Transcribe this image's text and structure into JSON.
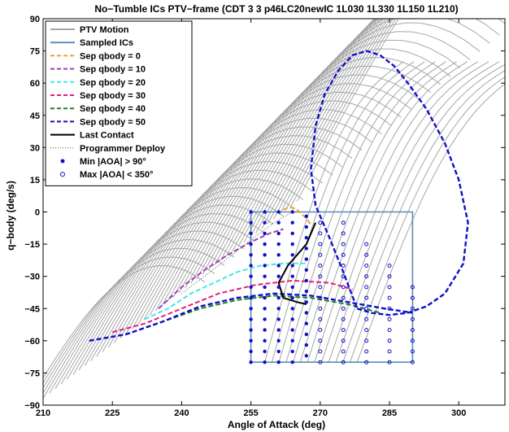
{
  "chart_data": {
    "type": "line",
    "title": "No−Tumble ICs PTV−frame (CDT 3 3 p46LC20newIC 1L030 1L330 1L150 1L210)",
    "xlabel": "Angle of Attack (deg)",
    "ylabel": "q−body (deg/s)",
    "xlim": [
      210,
      310
    ],
    "ylim": [
      -90,
      90
    ],
    "xticks": [
      "210",
      "225",
      "240",
      "255",
      "270",
      "285",
      "300"
    ],
    "yticks": [
      "90",
      "75",
      "60",
      "45",
      "30",
      "15",
      "0",
      "−15",
      "−30",
      "−45",
      "−60",
      "−75",
      "−90"
    ],
    "grid": false,
    "legend_position": "top-left",
    "colors": {
      "ptv": "#a6a6a6",
      "sampled": "#5b8db8",
      "sep0": "#f0a030",
      "sep10": "#9b3fb0",
      "sep20": "#40e8e8",
      "sep30": "#e0207a",
      "sep40": "#208020",
      "sep50": "#1010c8",
      "last_contact": "#000000",
      "programmer": "#555555",
      "markers": "#1010c8"
    },
    "legend": [
      "PTV Motion",
      "Sampled ICs",
      "Sep qbody = 0",
      "Sep qbody = 10",
      "Sep qbody = 20",
      "Sep qbody = 30",
      "Sep qbody = 40",
      "Sep qbody = 50",
      "Last Contact",
      "Programmer Deploy",
      "Min |AOA| > 90°",
      "Max |AOA| < 350°"
    ],
    "series": [
      {
        "name": "Sampled ICs",
        "x": [
          255,
          290,
          290,
          255,
          255
        ],
        "y": [
          0,
          0,
          -70,
          -70,
          0
        ]
      },
      {
        "name": "Sep qbody = 0",
        "x": [
          262,
          263,
          264,
          265,
          266,
          267,
          268
        ],
        "y": [
          1,
          2,
          2,
          1,
          -1,
          -3,
          -6
        ]
      },
      {
        "name": "Sep qbody = 10",
        "x": [
          235,
          240,
          245,
          250,
          255,
          259,
          262
        ],
        "y": [
          -45,
          -35,
          -27,
          -20,
          -14,
          -10,
          -8
        ]
      },
      {
        "name": "Sep qbody = 20",
        "x": [
          232,
          237,
          242,
          247,
          252,
          257,
          262,
          267
        ],
        "y": [
          -50,
          -45,
          -38,
          -33,
          -28,
          -25,
          -24,
          -24
        ]
      },
      {
        "name": "Sep qbody = 30",
        "x": [
          225,
          232,
          240,
          248,
          256,
          264,
          272,
          277
        ],
        "y": [
          -56,
          -52,
          -45,
          -38,
          -34,
          -32,
          -33,
          -36
        ]
      },
      {
        "name": "Sep qbody = 40",
        "x": [
          220,
          228,
          236,
          244,
          252,
          260,
          268,
          276,
          283
        ],
        "y": [
          -60,
          -57,
          -51,
          -45,
          -41,
          -39,
          -40,
          -43,
          -47
        ]
      },
      {
        "name": "Sep qbody = 50",
        "x": [
          220,
          228,
          236,
          244,
          252,
          260,
          268,
          276,
          284,
          290
        ],
        "y": [
          -60,
          -57,
          -51,
          -44,
          -40,
          -38,
          -39,
          -42,
          -45,
          -47
        ]
      },
      {
        "name": "Last Contact",
        "x": [
          269,
          267,
          263,
          261,
          262,
          265,
          267
        ],
        "y": [
          -5,
          -15,
          -25,
          -33,
          -40,
          -42,
          -43
        ]
      },
      {
        "name": "Programmer Deploy",
        "x": [
          240,
          248,
          255,
          260,
          264
        ],
        "y": [
          -38,
          -25,
          -13,
          -5,
          0
        ]
      }
    ],
    "sep50_loop": {
      "name": "Sep qbody = 50",
      "x": [
        278,
        281,
        285,
        289,
        293,
        297,
        301,
        302,
        300,
        297,
        293,
        289,
        286,
        283,
        280,
        277,
        274,
        271,
        269,
        268,
        269,
        272,
        275,
        278
      ],
      "y": [
        -45,
        -47,
        -48,
        -47,
        -44,
        -38,
        -24,
        -5,
        15,
        32,
        48,
        60,
        68,
        73,
        75,
        73,
        66,
        55,
        40,
        20,
        3,
        -12,
        -28,
        -45
      ]
    },
    "min_aoa_markers": {
      "name": "Min |AOA| > 90°",
      "x": [
        255,
        258,
        261,
        264,
        267
      ],
      "y_top": [
        0,
        0,
        0,
        0,
        -2
      ],
      "y_bottom": -70,
      "step": 5
    },
    "max_aoa_markers": {
      "name": "Max |AOA| < 350°",
      "x": [
        270,
        275,
        280,
        285,
        290
      ],
      "y_top": [
        -5,
        -5,
        -15,
        -25,
        -35
      ],
      "y_bottom": -70,
      "step": 5
    },
    "ptv_motion": {
      "name": "PTV Motion",
      "count": 48,
      "note": "family of grey trajectory curves filling the plot"
    }
  }
}
